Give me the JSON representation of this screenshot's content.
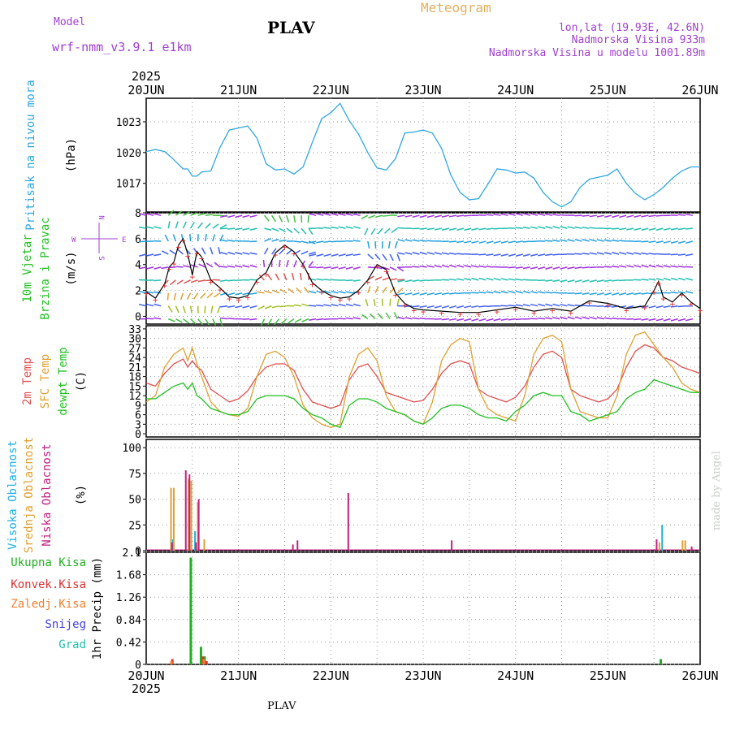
{
  "header": {
    "model_label": "Model",
    "model_value": "wrf-nmm_v3.9.1 e1km",
    "station": "PLAV",
    "meteogram": "Meteogram",
    "lonlat": "lon,lat (19.93E, 42.6N)",
    "altitude": "Nadmorska Visina 933m",
    "model_altitude": "Nadmorska Visina u modelu 1001.89m",
    "footer_station": "PLAV",
    "watermark": "made by Angel"
  },
  "colors": {
    "pressure": "#30a8e0",
    "wind_label": "#20c020",
    "t2m": "#e05050",
    "sfc": "#e0a030",
    "dewpt": "#20c020",
    "high_cloud": "#20b0e0",
    "mid_cloud": "#e0a030",
    "low_cloud": "#c02080",
    "total_precip": "#20b020",
    "conv_precip": "#e03030",
    "frozen_precip": "#f08030",
    "snow": "#4040e0",
    "hail": "#20c0b0",
    "purple_text": "#a040d0"
  },
  "time_axis": {
    "year": "2025",
    "days": [
      "20JUN",
      "21JUN",
      "22JUN",
      "23JUN",
      "24JUN",
      "25JUN",
      "26JUN"
    ]
  },
  "chart_data": [
    {
      "type": "line",
      "name": "pressure",
      "ylabel_main": "Pritisak na nivou mora",
      "ylabel_unit": "(hPa)",
      "yticks": [
        1017,
        1020,
        1023
      ],
      "ylim": [
        1014.2,
        1025.3
      ],
      "x": [
        0,
        0.1,
        0.2,
        0.3,
        0.4,
        0.45,
        0.5,
        0.55,
        0.6,
        0.7,
        0.8,
        0.9,
        1.0,
        1.1,
        1.2,
        1.3,
        1.4,
        1.5,
        1.6,
        1.7,
        1.8,
        1.9,
        2.0,
        2.1,
        2.2,
        2.3,
        2.4,
        2.5,
        2.6,
        2.7,
        2.8,
        2.9,
        3.0,
        3.1,
        3.2,
        3.3,
        3.4,
        3.5,
        3.6,
        3.7,
        3.8,
        3.9,
        4.0,
        4.1,
        4.2,
        4.3,
        4.4,
        4.5,
        4.6,
        4.7,
        4.8,
        4.9,
        5.0,
        5.1,
        5.2,
        5.3,
        5.4,
        5.5,
        5.6,
        5.7,
        5.8,
        5.9,
        6.0
      ],
      "values": [
        1020.1,
        1020.3,
        1020.1,
        1019.3,
        1018.4,
        1018.4,
        1017.7,
        1017.7,
        1018.1,
        1018.2,
        1020.5,
        1022.2,
        1022.4,
        1022.6,
        1021.4,
        1018.9,
        1018.3,
        1018.4,
        1017.9,
        1018.6,
        1021.0,
        1023.3,
        1023.9,
        1024.8,
        1023.1,
        1021.8,
        1020.0,
        1018.5,
        1018.3,
        1019.4,
        1021.9,
        1022.0,
        1022.2,
        1021.9,
        1020.4,
        1017.8,
        1016.1,
        1015.4,
        1015.5,
        1016.9,
        1018.4,
        1018.3,
        1018.0,
        1018.1,
        1017.5,
        1016.1,
        1015.2,
        1014.7,
        1015.2,
        1016.6,
        1017.4,
        1017.6,
        1017.8,
        1018.4,
        1017.0,
        1016.0,
        1015.4,
        1015.9,
        1016.6,
        1017.5,
        1018.2,
        1018.6,
        1018.6
      ],
      "xlim": [
        0,
        6
      ]
    },
    {
      "type": "line",
      "name": "wind",
      "ylabel_main": "10m Vjetar",
      "ylabel_sub": "Brzina i Pravac",
      "ylabel_unit": "(m/s)",
      "compass": {
        "n": "N",
        "s": "S",
        "w": "W",
        "e": "E"
      },
      "yticks": [
        0,
        2,
        4,
        6,
        8
      ],
      "ylim": [
        -0.6,
        8
      ],
      "x": [
        0,
        0.1,
        0.2,
        0.25,
        0.3,
        0.35,
        0.4,
        0.45,
        0.5,
        0.55,
        0.6,
        0.7,
        0.8,
        0.9,
        1.0,
        1.1,
        1.2,
        1.3,
        1.4,
        1.5,
        1.6,
        1.7,
        1.8,
        1.9,
        2.0,
        2.1,
        2.2,
        2.3,
        2.4,
        2.5,
        2.6,
        2.7,
        2.8,
        2.9,
        3.0,
        3.2,
        3.4,
        3.6,
        3.8,
        4.0,
        4.2,
        4.4,
        4.6,
        4.8,
        5.0,
        5.2,
        5.4,
        5.5,
        5.55,
        5.6,
        5.7,
        5.8,
        5.9,
        6.0
      ],
      "speed": [
        1.9,
        1.4,
        2.5,
        3.8,
        4.2,
        5.5,
        6.0,
        4.8,
        3.2,
        5.0,
        4.6,
        2.8,
        2.2,
        1.5,
        1.4,
        1.6,
        2.8,
        3.4,
        4.9,
        5.5,
        5.0,
        4.0,
        2.6,
        2.0,
        1.6,
        1.4,
        1.5,
        2.0,
        2.8,
        4.0,
        3.6,
        1.8,
        1.0,
        0.6,
        0.5,
        0.4,
        0.3,
        0.3,
        0.5,
        0.7,
        0.4,
        0.6,
        0.4,
        1.2,
        1.0,
        0.6,
        0.8,
        2.0,
        2.7,
        1.5,
        1.1,
        1.8,
        1.1,
        0.6
      ],
      "xlim": [
        0,
        6
      ]
    },
    {
      "type": "line",
      "name": "temperature",
      "ylabels": [
        "2m Temp",
        "SFC Temp",
        "dewpt Temp"
      ],
      "ylabel_unit": "(C)",
      "yticks": [
        0,
        3,
        6,
        9,
        12,
        15,
        18,
        21,
        24,
        27,
        30,
        33
      ],
      "ylim": [
        -1,
        34
      ],
      "x": [
        0,
        0.1,
        0.2,
        0.3,
        0.4,
        0.45,
        0.5,
        0.55,
        0.6,
        0.7,
        0.8,
        0.9,
        1.0,
        1.1,
        1.2,
        1.3,
        1.4,
        1.5,
        1.6,
        1.7,
        1.8,
        1.9,
        2.0,
        2.1,
        2.2,
        2.3,
        2.4,
        2.5,
        2.6,
        2.7,
        2.8,
        2.9,
        3.0,
        3.1,
        3.2,
        3.3,
        3.4,
        3.5,
        3.6,
        3.7,
        3.8,
        3.9,
        4.0,
        4.1,
        4.2,
        4.3,
        4.4,
        4.5,
        4.6,
        4.7,
        4.8,
        4.9,
        5.0,
        5.1,
        5.2,
        5.3,
        5.4,
        5.5,
        5.6,
        5.7,
        5.8,
        5.9,
        6.0
      ],
      "series": [
        {
          "name": "2m Temp",
          "values": [
            16,
            15,
            19,
            22,
            23.5,
            21,
            23,
            21,
            20,
            14,
            12,
            10,
            11,
            13.5,
            18,
            21,
            22,
            22,
            20,
            14,
            10,
            9,
            8,
            9,
            17,
            21,
            22,
            18,
            13,
            12,
            11,
            10,
            10.5,
            14,
            19,
            22,
            23,
            22,
            14,
            12,
            11,
            10,
            11.5,
            15,
            21,
            25,
            26,
            24,
            14,
            12,
            11,
            10,
            11,
            14,
            21,
            26,
            28,
            27,
            24,
            23,
            21,
            20,
            19
          ]
        },
        {
          "name": "SFC Temp",
          "values": [
            10,
            12,
            21,
            25,
            27,
            23,
            27,
            22,
            18,
            10,
            7,
            6,
            5.5,
            8,
            18,
            25,
            26,
            24,
            18,
            9,
            5,
            3,
            2,
            3,
            18,
            25,
            27,
            23,
            12,
            7,
            6,
            4,
            3,
            10,
            23,
            28,
            30,
            29,
            14,
            8,
            6,
            5,
            4,
            12,
            25,
            30,
            31,
            29,
            14,
            7,
            6,
            5,
            5,
            12,
            25,
            31,
            32,
            28,
            24,
            21,
            16,
            14,
            13
          ]
        },
        {
          "name": "dewpt Temp",
          "values": [
            11,
            11,
            13,
            15,
            16,
            14,
            16,
            12,
            11,
            8,
            7,
            6,
            6,
            7,
            11,
            12,
            12,
            12,
            11,
            8,
            6,
            5,
            3,
            2,
            9,
            11,
            11,
            10,
            8,
            7,
            6,
            4,
            3,
            5,
            8,
            9,
            9,
            8,
            6,
            5,
            5,
            4,
            7,
            9,
            12,
            13,
            12,
            12,
            7,
            6,
            4,
            5,
            6,
            7,
            11,
            13,
            14,
            17,
            16,
            15,
            14,
            13,
            13
          ]
        }
      ],
      "xlim": [
        0,
        6
      ]
    },
    {
      "type": "bar",
      "name": "clouds",
      "ylabels": [
        "Visoka Oblacnost",
        "Srednja Oblacnost",
        "Niska Oblacnost"
      ],
      "ylabel_unit": "(%)",
      "yticks": [
        0,
        25,
        50,
        75,
        100
      ],
      "ylim": [
        0,
        108
      ],
      "series": [
        {
          "name": "Visoka Oblacnost",
          "x": [
            0.28,
            0.52,
            5.58
          ],
          "values": [
            11,
            19,
            25
          ]
        },
        {
          "name": "Srednja Oblacnost",
          "x": [
            0.26,
            0.29,
            0.45,
            0.48,
            0.55,
            0.62,
            5.55,
            5.8,
            5.83
          ],
          "values": [
            61,
            61,
            70,
            68,
            47,
            11,
            8,
            10,
            10
          ]
        },
        {
          "name": "Niska Oblacnost",
          "x": [
            0.27,
            0.42,
            0.46,
            0.53,
            0.56,
            1.58,
            1.63,
            2.18,
            3.3,
            5.52,
            5.9
          ],
          "values": [
            8,
            78,
            74,
            8,
            50,
            6,
            10,
            56,
            10,
            11,
            4
          ]
        }
      ],
      "xlim": [
        0,
        6
      ]
    },
    {
      "type": "bar",
      "name": "precipitation",
      "ylabels": [
        "Ukupna Kisa",
        "Konvek.Kisa",
        "Zaledj.Kisa",
        "Snijeg",
        "Grad"
      ],
      "ylabel_unit": "1hr Precip (mm)",
      "yticks": [
        0,
        0.42,
        0.84,
        1.26,
        1.68,
        2.1
      ],
      "ytick_labels": [
        "0",
        "0.42",
        "0.84",
        "1.26",
        "1.68",
        "2.1"
      ],
      "ylim": [
        0,
        2.1
      ],
      "series": [
        {
          "name": "Ukupna Kisa",
          "x": [
            0.47,
            0.58,
            0.62,
            5.56
          ],
          "values": [
            2.0,
            0.33,
            0.15,
            0.1
          ]
        },
        {
          "name": "Konvek.Kisa",
          "x": [
            0.27,
            0.6,
            0.64
          ],
          "values": [
            0.1,
            0.15,
            0.06
          ]
        },
        {
          "name": "Zaledj.Kisa",
          "x": [
            0.26,
            0.61
          ],
          "values": [
            0.06,
            0.1
          ]
        }
      ],
      "xlim": [
        0,
        6
      ]
    }
  ]
}
